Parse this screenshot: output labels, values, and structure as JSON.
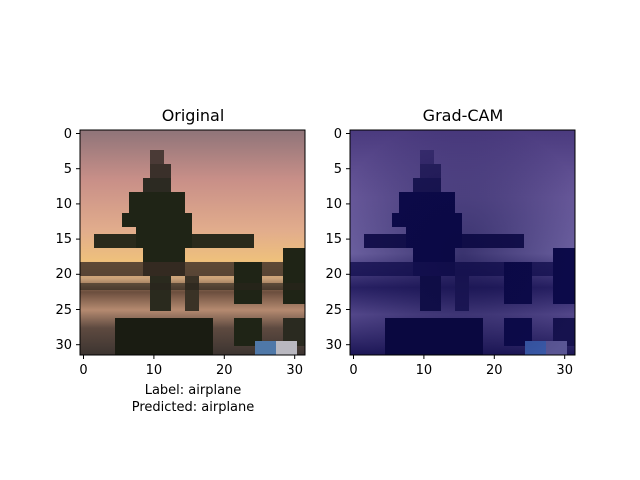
{
  "chart_data": [
    {
      "type": "heatmap",
      "title": "Original",
      "xlabel": "Label: airplane\nPredicted: airplane",
      "xlabel_lines": [
        "Label: airplane",
        "Predicted: airplane"
      ],
      "xlim": [
        -0.5,
        31.5
      ],
      "ylim": [
        31.5,
        -0.5
      ],
      "x_ticks": [
        0,
        10,
        20,
        30
      ],
      "y_ticks": [
        0,
        5,
        10,
        15,
        20,
        25,
        30
      ],
      "grid": false,
      "image_size": [
        32,
        32
      ],
      "content": "32x32 photo of an airplane silhouette against a sunset sky"
    },
    {
      "type": "heatmap",
      "title": "Grad-CAM",
      "xlabel": "",
      "xlim": [
        -0.5,
        31.5
      ],
      "ylim": [
        31.5,
        -0.5
      ],
      "x_ticks": [
        0,
        10,
        20,
        30
      ],
      "y_ticks": [
        0,
        5,
        10,
        15,
        20,
        25,
        30
      ],
      "grid": false,
      "image_size": [
        32,
        32
      ],
      "content": "Grad-CAM heatmap overlay on the same 32x32 airplane image"
    }
  ],
  "colors": {
    "sky_top": "#8a6e78",
    "sky_pink": "#d49a8e",
    "sky_gold": "#e9b67a",
    "silhouette": "#1f2416",
    "overlay_bg": "#3c2f7c",
    "overlay_dark": "#0c0a4a"
  }
}
